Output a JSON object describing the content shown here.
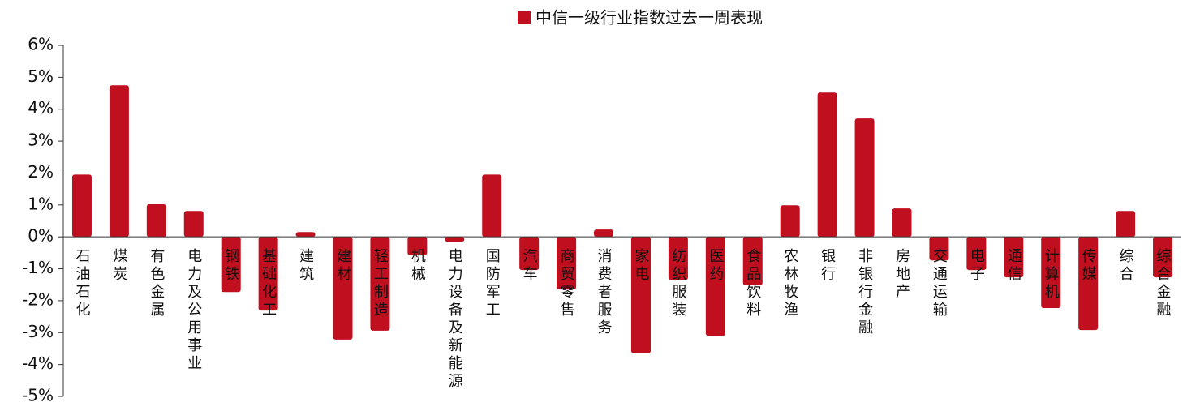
{
  "chart_data": {
    "type": "bar",
    "categories": [
      "石油石化",
      "煤炭",
      "有色金属",
      "电力及公用事业",
      "钢铁",
      "基础化工",
      "建筑",
      "建材",
      "轻工制造",
      "机械",
      "电力设备及新能源",
      "国防军工",
      "汽车",
      "商贸零售",
      "消费者服务",
      "家电",
      "纺织服装",
      "医药",
      "食品饮料",
      "农林牧渔",
      "银行",
      "非银行金融",
      "房地产",
      "交通运输",
      "电子",
      "通信",
      "计算机",
      "传媒",
      "综合",
      "综合金融"
    ],
    "series": [
      {
        "name": "中信一级行业指数过去一周表现",
        "color": "#c00f1e",
        "values": [
          1.95,
          4.75,
          1.02,
          0.81,
          -1.73,
          -2.31,
          0.15,
          -3.22,
          -2.94,
          -0.58,
          -0.15,
          1.95,
          -1.04,
          -1.65,
          0.23,
          -3.65,
          -1.35,
          -3.1,
          -1.52,
          0.99,
          4.52,
          3.71,
          0.89,
          -0.74,
          -1.04,
          -1.27,
          -2.23,
          -2.92,
          0.81,
          -1.27
        ]
      }
    ],
    "ylim": [
      -5,
      6
    ],
    "yticks": [
      {
        "value": -5,
        "label": "-5%"
      },
      {
        "value": -4,
        "label": "-4%"
      },
      {
        "value": -3,
        "label": "-3%"
      },
      {
        "value": -2,
        "label": "-2%"
      },
      {
        "value": -1,
        "label": "-1%"
      },
      {
        "value": 0,
        "label": "0%"
      },
      {
        "value": 1,
        "label": "1%"
      },
      {
        "value": 2,
        "label": "2%"
      },
      {
        "value": 3,
        "label": "3%"
      },
      {
        "value": 4,
        "label": "4%"
      },
      {
        "value": 5,
        "label": "5%"
      },
      {
        "value": 6,
        "label": "6%"
      }
    ],
    "legend": "top"
  }
}
